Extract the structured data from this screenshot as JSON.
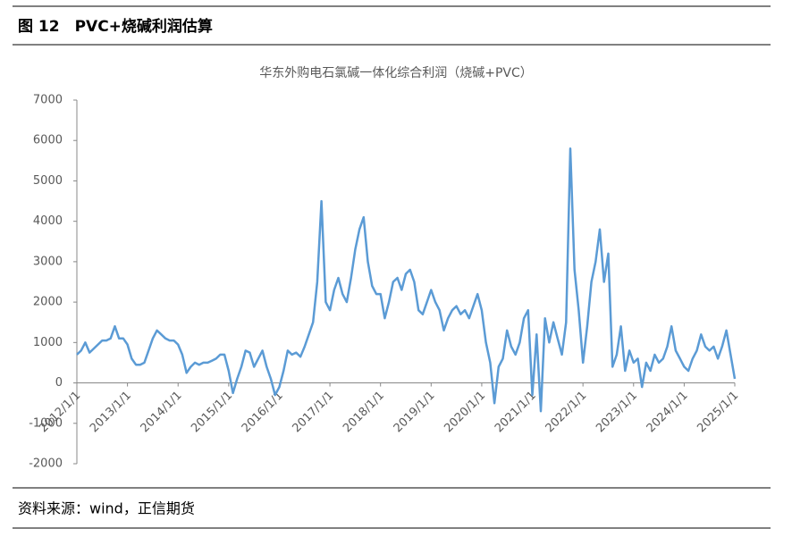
{
  "header": {
    "title": "图 12　PVC+烧碱利润估算"
  },
  "footer": {
    "source": "资料来源：wind，正信期货"
  },
  "chart_data": {
    "type": "line",
    "title": "华东外购电石氯碱一体化综合利润（烧碱+PVC）",
    "x": [
      "2012/1/1",
      "2012/2/1",
      "2012/3/1",
      "2012/4/1",
      "2012/5/1",
      "2012/6/1",
      "2012/7/1",
      "2012/8/1",
      "2012/9/1",
      "2012/10/1",
      "2012/11/1",
      "2012/12/1",
      "2013/1/1",
      "2013/2/1",
      "2013/3/1",
      "2013/4/1",
      "2013/5/1",
      "2013/6/1",
      "2013/7/1",
      "2013/8/1",
      "2013/9/1",
      "2013/10/1",
      "2013/11/1",
      "2013/12/1",
      "2014/1/1",
      "2014/2/1",
      "2014/3/1",
      "2014/4/1",
      "2014/5/1",
      "2014/6/1",
      "2014/7/1",
      "2014/8/1",
      "2014/9/1",
      "2014/10/1",
      "2014/11/1",
      "2014/12/1",
      "2015/1/1",
      "2015/2/1",
      "2015/3/1",
      "2015/4/1",
      "2015/5/1",
      "2015/6/1",
      "2015/7/1",
      "2015/8/1",
      "2015/9/1",
      "2015/10/1",
      "2015/11/1",
      "2015/12/1",
      "2016/1/1",
      "2016/2/1",
      "2016/3/1",
      "2016/4/1",
      "2016/5/1",
      "2016/6/1",
      "2016/7/1",
      "2016/8/1",
      "2016/9/1",
      "2016/10/1",
      "2016/11/1",
      "2016/12/1",
      "2017/1/1",
      "2017/2/1",
      "2017/3/1",
      "2017/4/1",
      "2017/5/1",
      "2017/6/1",
      "2017/7/1",
      "2017/8/1",
      "2017/9/1",
      "2017/10/1",
      "2017/11/1",
      "2017/12/1",
      "2018/1/1",
      "2018/2/1",
      "2018/3/1",
      "2018/4/1",
      "2018/5/1",
      "2018/6/1",
      "2018/7/1",
      "2018/8/1",
      "2018/9/1",
      "2018/10/1",
      "2018/11/1",
      "2018/12/1",
      "2019/1/1",
      "2019/2/1",
      "2019/3/1",
      "2019/4/1",
      "2019/5/1",
      "2019/6/1",
      "2019/7/1",
      "2019/8/1",
      "2019/9/1",
      "2019/10/1",
      "2019/11/1",
      "2019/12/1",
      "2020/1/1",
      "2020/2/1",
      "2020/3/1",
      "2020/4/1",
      "2020/5/1",
      "2020/6/1",
      "2020/7/1",
      "2020/8/1",
      "2020/9/1",
      "2020/10/1",
      "2020/11/1",
      "2020/12/1",
      "2021/1/1",
      "2021/2/1",
      "2021/3/1",
      "2021/4/1",
      "2021/5/1",
      "2021/6/1",
      "2021/7/1",
      "2021/8/1",
      "2021/9/1",
      "2021/10/1",
      "2021/11/1",
      "2021/12/1",
      "2022/1/1",
      "2022/2/1",
      "2022/3/1",
      "2022/4/1",
      "2022/5/1",
      "2022/6/1",
      "2022/7/1",
      "2022/8/1",
      "2022/9/1",
      "2022/10/1",
      "2022/11/1",
      "2022/12/1",
      "2023/1/1",
      "2023/2/1",
      "2023/3/1",
      "2023/4/1",
      "2023/5/1",
      "2023/6/1",
      "2023/7/1",
      "2023/8/1",
      "2023/9/1",
      "2023/10/1",
      "2023/11/1",
      "2023/12/1",
      "2024/1/1",
      "2024/2/1",
      "2024/3/1",
      "2024/4/1",
      "2024/5/1",
      "2024/6/1",
      "2024/7/1",
      "2024/8/1",
      "2024/9/1",
      "2024/10/1",
      "2024/11/1",
      "2024/12/1",
      "2025/1/1"
    ],
    "series": [
      {
        "color": "#5b9bd5",
        "values": [
          700,
          800,
          1000,
          750,
          850,
          950,
          1050,
          1050,
          1100,
          1400,
          1100,
          1100,
          950,
          600,
          450,
          450,
          500,
          800,
          1100,
          1300,
          1200,
          1100,
          1050,
          1050,
          950,
          700,
          250,
          400,
          500,
          450,
          500,
          500,
          550,
          600,
          700,
          700,
          300,
          -250,
          100,
          400,
          800,
          750,
          400,
          600,
          800,
          400,
          100,
          -300,
          -100,
          300,
          800,
          700,
          750,
          650,
          900,
          1200,
          1500,
          2500,
          4500,
          2000,
          1800,
          2300,
          2600,
          2200,
          2000,
          2600,
          3300,
          3800,
          4100,
          3000,
          2400,
          2200,
          2200,
          1600,
          2000,
          2500,
          2600,
          2300,
          2700,
          2800,
          2500,
          1800,
          1700,
          2000,
          2300,
          2000,
          1800,
          1300,
          1600,
          1800,
          1900,
          1700,
          1800,
          1600,
          1900,
          2200,
          1800,
          1000,
          500,
          -500,
          400,
          600,
          1300,
          900,
          700,
          1000,
          1600,
          1800,
          -300,
          1200,
          -700,
          1600,
          1000,
          1500,
          1100,
          700,
          1500,
          5800,
          2800,
          1800,
          500,
          1400,
          2500,
          3000,
          3800,
          2500,
          3200,
          400,
          700,
          1400,
          300,
          800,
          500,
          600,
          -100,
          500,
          300,
          700,
          500,
          600,
          900,
          1400,
          800,
          600,
          400,
          300,
          600,
          800,
          1200,
          900,
          800,
          900,
          600,
          900,
          1300,
          700,
          100
        ]
      }
    ],
    "xlim": [
      "2012/1/1",
      "2025/1/1"
    ],
    "xticks": [
      "2012/1/1",
      "2013/1/1",
      "2014/1/1",
      "2015/1/1",
      "2016/1/1",
      "2017/1/1",
      "2018/1/1",
      "2019/1/1",
      "2020/1/1",
      "2021/1/1",
      "2022/1/1",
      "2023/1/1",
      "2024/1/1",
      "2025/1/1"
    ],
    "ylim": [
      -2000,
      7000
    ],
    "yticks": [
      -2000,
      -1000,
      0,
      1000,
      2000,
      3000,
      4000,
      5000,
      6000,
      7000
    ]
  }
}
